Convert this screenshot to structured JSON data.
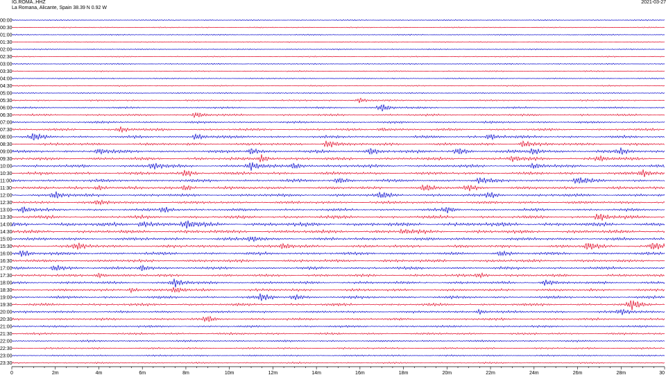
{
  "header": {
    "station": "IG.ROMA..HHZ",
    "location": "La Romana, Alicante, Spain  38.39 N 0.92 W",
    "date": "2021-03-27"
  },
  "chart_data": {
    "type": "line",
    "title": "",
    "xlabel": "",
    "ylabel": "",
    "xlim": [
      0,
      30
    ],
    "row_labels": [
      "00:00",
      "00:30",
      "01:00",
      "01:30",
      "02:00",
      "02:30",
      "03:00",
      "03:30",
      "04:00",
      "04:30",
      "05:00",
      "05:30",
      "06:00",
      "06:30",
      "07:00",
      "07:30",
      "08:00",
      "08:30",
      "09:00",
      "09:30",
      "10:00",
      "10:30",
      "11:00",
      "11:30",
      "12:00",
      "12:30",
      "13:00",
      "13:30",
      "14:00",
      "14:30",
      "15:00",
      "15:30",
      "16:00",
      "16:30",
      "17:00",
      "17:30",
      "18:00",
      "18:30",
      "19:00",
      "19:30",
      "20:00",
      "20:30",
      "21:00",
      "21:30",
      "22:00",
      "22:30",
      "23:00",
      "23:30"
    ],
    "x_tick_labels": [
      "0",
      "2m",
      "4m",
      "6m",
      "8m",
      "10m",
      "12m",
      "14m",
      "16m",
      "18m",
      "20m",
      "22m",
      "24m",
      "26m",
      "28m",
      "30"
    ],
    "x_tick_values": [
      0,
      2,
      4,
      6,
      8,
      10,
      12,
      14,
      16,
      18,
      20,
      22,
      24,
      26,
      28,
      30
    ],
    "colors": {
      "primary": "#0000cc",
      "secondary": "#e00020"
    },
    "trace_colors": "alternating blue/red per row",
    "grid": false,
    "noise_level_by_row": [
      0.8,
      0.8,
      0.8,
      0.8,
      0.8,
      0.8,
      0.9,
      0.9,
      0.9,
      0.9,
      1.0,
      1.2,
      1.4,
      1.6,
      1.6,
      1.8,
      2.0,
      2.0,
      2.2,
      2.2,
      2.2,
      2.2,
      2.2,
      2.2,
      2.2,
      2.0,
      2.0,
      2.4,
      3.0,
      2.6,
      2.2,
      2.2,
      2.2,
      2.2,
      2.0,
      2.0,
      2.0,
      2.0,
      2.0,
      2.0,
      1.8,
      1.8,
      1.6,
      1.6,
      1.4,
      1.4,
      1.2,
      1.2
    ],
    "events": [
      {
        "row": 11,
        "t": 16.0,
        "amp": 4
      },
      {
        "row": 12,
        "t": 17.0,
        "amp": 6
      },
      {
        "row": 13,
        "t": 8.5,
        "amp": 4
      },
      {
        "row": 15,
        "t": 5.0,
        "amp": 4
      },
      {
        "row": 15,
        "t": 17.0,
        "amp": 3
      },
      {
        "row": 16,
        "t": 1.0,
        "amp": 5
      },
      {
        "row": 16,
        "t": 8.5,
        "amp": 5
      },
      {
        "row": 16,
        "t": 22.0,
        "amp": 5
      },
      {
        "row": 17,
        "t": 14.5,
        "amp": 6
      },
      {
        "row": 17,
        "t": 23.5,
        "amp": 5
      },
      {
        "row": 18,
        "t": 4.0,
        "amp": 5
      },
      {
        "row": 18,
        "t": 11.0,
        "amp": 5
      },
      {
        "row": 18,
        "t": 16.5,
        "amp": 5
      },
      {
        "row": 18,
        "t": 20.5,
        "amp": 5
      },
      {
        "row": 18,
        "t": 24.0,
        "amp": 5
      },
      {
        "row": 18,
        "t": 28.0,
        "amp": 4
      },
      {
        "row": 19,
        "t": 11.5,
        "amp": 6
      },
      {
        "row": 19,
        "t": 23.0,
        "amp": 4
      },
      {
        "row": 19,
        "t": 27.0,
        "amp": 4
      },
      {
        "row": 20,
        "t": 6.5,
        "amp": 5
      },
      {
        "row": 20,
        "t": 11.0,
        "amp": 6
      },
      {
        "row": 20,
        "t": 13.0,
        "amp": 5
      },
      {
        "row": 20,
        "t": 24.0,
        "amp": 4
      },
      {
        "row": 21,
        "t": 8.0,
        "amp": 5
      },
      {
        "row": 21,
        "t": 29.0,
        "amp": 5
      },
      {
        "row": 22,
        "t": 15.0,
        "amp": 4
      },
      {
        "row": 22,
        "t": 21.5,
        "amp": 4
      },
      {
        "row": 22,
        "t": 26.0,
        "amp": 5
      },
      {
        "row": 23,
        "t": 4.0,
        "amp": 4
      },
      {
        "row": 23,
        "t": 8.0,
        "amp": 4
      },
      {
        "row": 23,
        "t": 19.0,
        "amp": 4
      },
      {
        "row": 23,
        "t": 21.0,
        "amp": 4
      },
      {
        "row": 24,
        "t": 2.0,
        "amp": 5
      },
      {
        "row": 24,
        "t": 17.0,
        "amp": 4
      },
      {
        "row": 24,
        "t": 22.0,
        "amp": 4
      },
      {
        "row": 25,
        "t": 4.0,
        "amp": 3
      },
      {
        "row": 26,
        "t": 0.5,
        "amp": 5
      },
      {
        "row": 26,
        "t": 7.0,
        "amp": 5
      },
      {
        "row": 26,
        "t": 20.0,
        "amp": 4
      },
      {
        "row": 27,
        "t": 27.0,
        "amp": 6
      },
      {
        "row": 28,
        "t": 6.0,
        "amp": 5
      },
      {
        "row": 28,
        "t": 8.0,
        "amp": 6
      },
      {
        "row": 29,
        "t": 18.0,
        "amp": 3
      },
      {
        "row": 30,
        "t": 11.0,
        "amp": 4
      },
      {
        "row": 31,
        "t": 3.0,
        "amp": 5
      },
      {
        "row": 31,
        "t": 12.5,
        "amp": 4
      },
      {
        "row": 31,
        "t": 26.5,
        "amp": 6
      },
      {
        "row": 31,
        "t": 29.5,
        "amp": 5
      },
      {
        "row": 32,
        "t": 0.5,
        "amp": 5
      },
      {
        "row": 32,
        "t": 22.5,
        "amp": 4
      },
      {
        "row": 34,
        "t": 2.0,
        "amp": 5
      },
      {
        "row": 34,
        "t": 6.0,
        "amp": 5
      },
      {
        "row": 35,
        "t": 4.0,
        "amp": 4
      },
      {
        "row": 35,
        "t": 21.5,
        "amp": 4
      },
      {
        "row": 36,
        "t": 7.5,
        "amp": 6
      },
      {
        "row": 36,
        "t": 24.5,
        "amp": 4
      },
      {
        "row": 37,
        "t": 5.5,
        "amp": 4
      },
      {
        "row": 37,
        "t": 7.5,
        "amp": 4
      },
      {
        "row": 38,
        "t": 11.5,
        "amp": 5
      },
      {
        "row": 38,
        "t": 13.0,
        "amp": 4
      },
      {
        "row": 39,
        "t": 28.5,
        "amp": 7
      },
      {
        "row": 40,
        "t": 21.5,
        "amp": 4
      },
      {
        "row": 40,
        "t": 28.0,
        "amp": 4
      },
      {
        "row": 41,
        "t": 9.0,
        "amp": 4
      }
    ]
  }
}
